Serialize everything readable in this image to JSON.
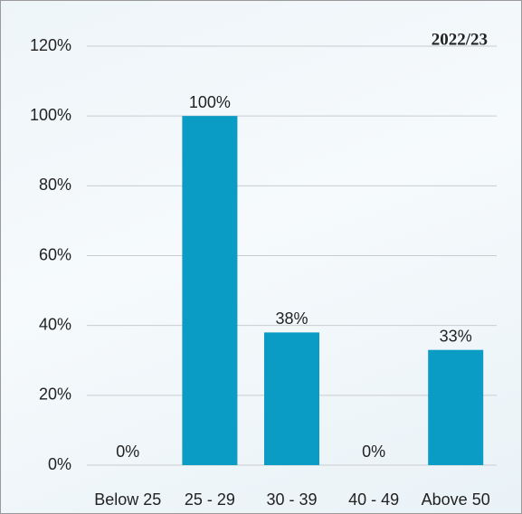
{
  "chart_data": {
    "type": "bar",
    "title": "2022/23",
    "categories": [
      "Below 25",
      "25 - 29",
      "30 - 39",
      "40 - 49",
      "Above 50"
    ],
    "values": [
      0,
      100,
      38,
      0,
      33
    ],
    "value_labels": [
      "0%",
      "100%",
      "38%",
      "0%",
      "33%"
    ],
    "color": "#0a9cc4",
    "ylim": [
      0,
      120
    ],
    "yticks": [
      {
        "value": 0,
        "label": "0%"
      },
      {
        "value": 20,
        "label": "20%"
      },
      {
        "value": 40,
        "label": "40%"
      },
      {
        "value": 60,
        "label": "60%"
      },
      {
        "value": 80,
        "label": "80%"
      },
      {
        "value": 100,
        "label": "100%"
      },
      {
        "value": 120,
        "label": "120%"
      }
    ],
    "grid": true
  }
}
